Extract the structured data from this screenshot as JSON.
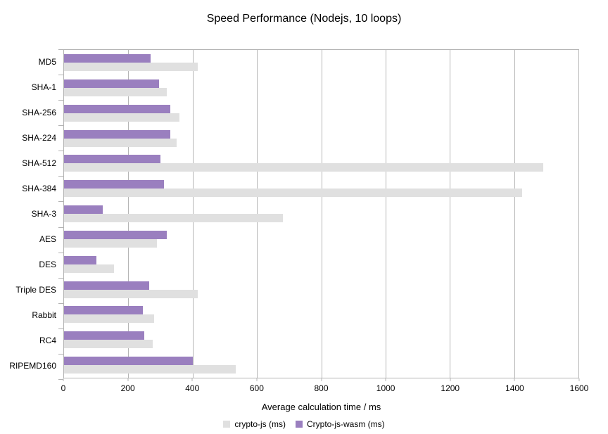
{
  "title": "Speed Performance (Nodejs, 10 loops)",
  "colors": {
    "background": "#ffffff",
    "plot_border": "#b3b3b3",
    "gridline": "#b5b5b5",
    "text": "#000000",
    "series_cryptojs": "#e0e0e0",
    "series_wasm": "#9a7fbf"
  },
  "legend": {
    "items": [
      {
        "label": "crypto-js (ms)",
        "color": "#e0e0e0"
      },
      {
        "label": "Crypto-js-wasm (ms)",
        "color": "#9a7fbf"
      }
    ]
  },
  "chart_data": {
    "type": "bar",
    "orientation": "horizontal",
    "title": "Speed Performance (Nodejs, 10 loops)",
    "xlabel": "Average calculation time / ms",
    "ylabel": "",
    "xlim": [
      0,
      1600
    ],
    "xticks": [
      0,
      200,
      400,
      600,
      800,
      1000,
      1200,
      1400,
      1600
    ],
    "grid": "vertical",
    "legend_position": "bottom",
    "categories": [
      "MD5",
      "SHA-1",
      "SHA-256",
      "SHA-224",
      "SHA-512",
      "SHA-384",
      "SHA-3",
      "AES",
      "DES",
      "Triple DES",
      "Rabbit",
      "RC4",
      "RIPEMD160"
    ],
    "series": [
      {
        "name": "crypto-js (ms)",
        "color": "#e0e0e0",
        "values": [
          415,
          320,
          360,
          350,
          1490,
          1425,
          680,
          290,
          155,
          415,
          280,
          275,
          535
        ]
      },
      {
        "name": "Crypto-js-wasm (ms)",
        "color": "#9a7fbf",
        "values": [
          270,
          295,
          330,
          330,
          300,
          310,
          120,
          320,
          100,
          265,
          245,
          250,
          400
        ]
      }
    ],
    "group_render_order": "wasm bar on top, crypto-js bar below within each category group"
  }
}
